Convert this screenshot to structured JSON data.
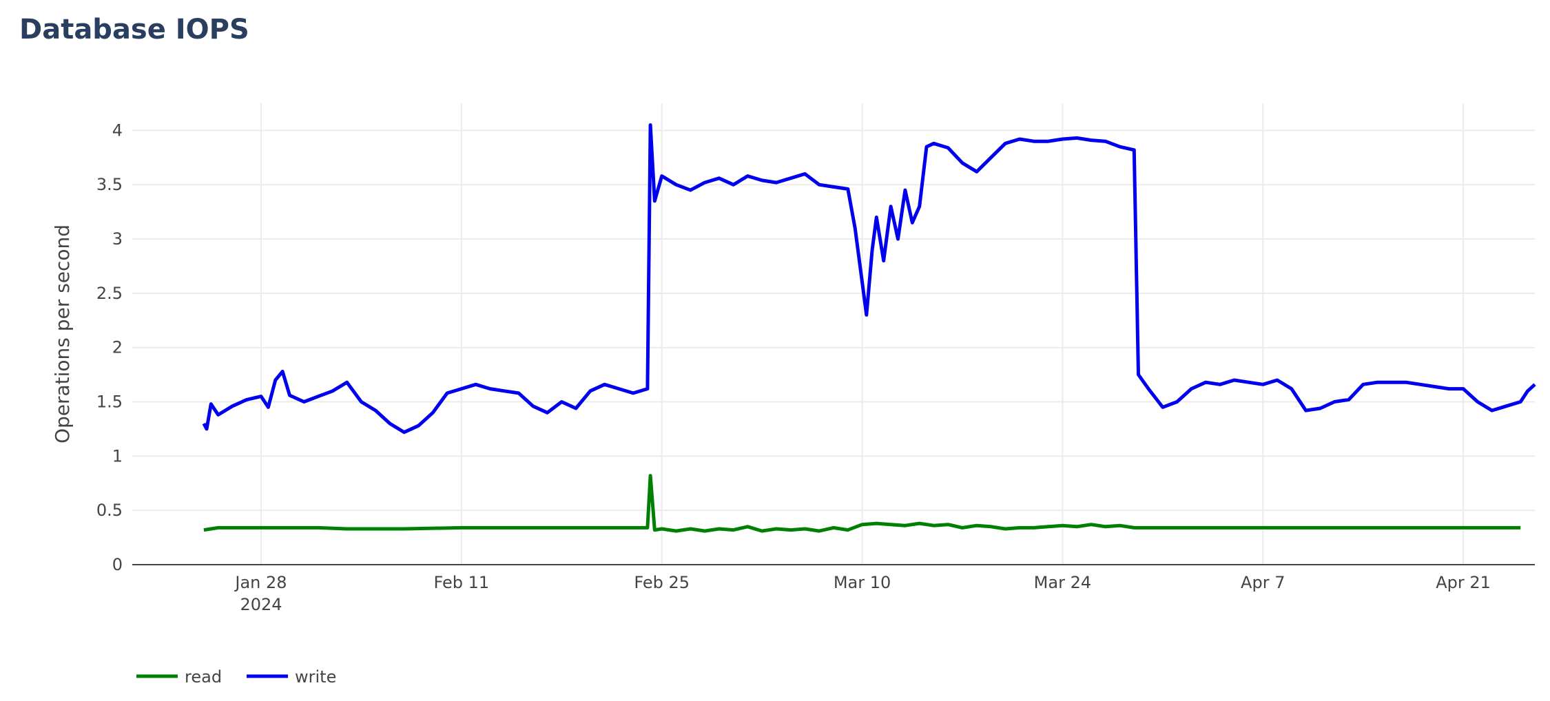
{
  "title": "Database IOPS",
  "chart_data": {
    "type": "line",
    "title": "Database IOPS",
    "xlabel": "",
    "ylabel": "Operations per second",
    "x_range": [
      "2024-01-19",
      "2024-04-26"
    ],
    "ylim": [
      0,
      4.25
    ],
    "y_ticks": [
      0,
      0.5,
      1,
      1.5,
      2,
      2.5,
      3,
      3.5,
      4
    ],
    "y_tick_labels": [
      "0",
      "0.5",
      "1",
      "1.5",
      "2",
      "2.5",
      "3",
      "3.5",
      "4"
    ],
    "x_ticks": [
      {
        "date": "2024-01-28",
        "label": "Jan 28",
        "sublabel": "2024"
      },
      {
        "date": "2024-02-11",
        "label": "Feb 11",
        "sublabel": ""
      },
      {
        "date": "2024-02-25",
        "label": "Feb 25",
        "sublabel": ""
      },
      {
        "date": "2024-03-10",
        "label": "Mar 10",
        "sublabel": ""
      },
      {
        "date": "2024-03-24",
        "label": "Mar 24",
        "sublabel": ""
      },
      {
        "date": "2024-04-07",
        "label": "Apr 7",
        "sublabel": ""
      },
      {
        "date": "2024-04-21",
        "label": "Apr 21",
        "sublabel": ""
      }
    ],
    "grid": true,
    "legend_position": "bottom-left",
    "series": [
      {
        "name": "read",
        "color": "#008000",
        "points": [
          [
            "2024-01-24",
            0.32
          ],
          [
            "2024-01-25",
            0.34
          ],
          [
            "2024-01-27",
            0.34
          ],
          [
            "2024-01-28",
            0.34
          ],
          [
            "2024-02-01",
            0.34
          ],
          [
            "2024-02-03",
            0.33
          ],
          [
            "2024-02-07",
            0.33
          ],
          [
            "2024-02-11",
            0.34
          ],
          [
            "2024-02-16",
            0.34
          ],
          [
            "2024-02-20",
            0.34
          ],
          [
            "2024-02-22",
            0.34
          ],
          [
            "2024-02-24",
            0.34
          ],
          [
            "2024-02-24.2",
            0.82
          ],
          [
            "2024-02-24.5",
            0.32
          ],
          [
            "2024-02-25",
            0.33
          ],
          [
            "2024-02-26",
            0.31
          ],
          [
            "2024-02-27",
            0.33
          ],
          [
            "2024-02-28",
            0.31
          ],
          [
            "2024-02-29",
            0.33
          ],
          [
            "2024-03-01",
            0.32
          ],
          [
            "2024-03-02",
            0.35
          ],
          [
            "2024-03-03",
            0.31
          ],
          [
            "2024-03-04",
            0.33
          ],
          [
            "2024-03-05",
            0.32
          ],
          [
            "2024-03-06",
            0.33
          ],
          [
            "2024-03-07",
            0.31
          ],
          [
            "2024-03-08",
            0.34
          ],
          [
            "2024-03-09",
            0.32
          ],
          [
            "2024-03-10",
            0.37
          ],
          [
            "2024-03-11",
            0.38
          ],
          [
            "2024-03-12",
            0.37
          ],
          [
            "2024-03-13",
            0.36
          ],
          [
            "2024-03-14",
            0.38
          ],
          [
            "2024-03-15",
            0.36
          ],
          [
            "2024-03-16",
            0.37
          ],
          [
            "2024-03-17",
            0.34
          ],
          [
            "2024-03-18",
            0.36
          ],
          [
            "2024-03-19",
            0.35
          ],
          [
            "2024-03-20",
            0.33
          ],
          [
            "2024-03-21",
            0.34
          ],
          [
            "2024-03-22",
            0.34
          ],
          [
            "2024-03-23",
            0.35
          ],
          [
            "2024-03-24",
            0.36
          ],
          [
            "2024-03-25",
            0.35
          ],
          [
            "2024-03-26",
            0.37
          ],
          [
            "2024-03-27",
            0.35
          ],
          [
            "2024-03-28",
            0.36
          ],
          [
            "2024-03-29",
            0.34
          ],
          [
            "2024-03-31",
            0.34
          ],
          [
            "2024-04-03",
            0.34
          ],
          [
            "2024-04-07",
            0.34
          ],
          [
            "2024-04-10",
            0.34
          ],
          [
            "2024-04-14",
            0.34
          ],
          [
            "2024-04-18",
            0.34
          ],
          [
            "2024-04-21",
            0.34
          ],
          [
            "2024-04-25",
            0.34
          ]
        ]
      },
      {
        "name": "write",
        "color": "#0000ee",
        "points": [
          [
            "2024-01-24",
            1.3
          ],
          [
            "2024-01-24.2",
            1.25
          ],
          [
            "2024-01-24.5",
            1.48
          ],
          [
            "2024-01-25",
            1.38
          ],
          [
            "2024-01-26",
            1.46
          ],
          [
            "2024-01-27",
            1.52
          ],
          [
            "2024-01-28",
            1.55
          ],
          [
            "2024-01-28.5",
            1.45
          ],
          [
            "2024-01-29",
            1.7
          ],
          [
            "2024-01-29.5",
            1.78
          ],
          [
            "2024-01-30",
            1.56
          ],
          [
            "2024-01-31",
            1.5
          ],
          [
            "2024-02-01",
            1.55
          ],
          [
            "2024-02-02",
            1.6
          ],
          [
            "2024-02-03",
            1.68
          ],
          [
            "2024-02-04",
            1.5
          ],
          [
            "2024-02-05",
            1.42
          ],
          [
            "2024-02-06",
            1.3
          ],
          [
            "2024-02-07",
            1.22
          ],
          [
            "2024-02-08",
            1.28
          ],
          [
            "2024-02-09",
            1.4
          ],
          [
            "2024-02-10",
            1.58
          ],
          [
            "2024-02-11",
            1.62
          ],
          [
            "2024-02-12",
            1.66
          ],
          [
            "2024-02-13",
            1.62
          ],
          [
            "2024-02-14",
            1.6
          ],
          [
            "2024-02-15",
            1.58
          ],
          [
            "2024-02-16",
            1.46
          ],
          [
            "2024-02-17",
            1.4
          ],
          [
            "2024-02-18",
            1.5
          ],
          [
            "2024-02-19",
            1.44
          ],
          [
            "2024-02-20",
            1.6
          ],
          [
            "2024-02-21",
            1.66
          ],
          [
            "2024-02-22",
            1.62
          ],
          [
            "2024-02-23",
            1.58
          ],
          [
            "2024-02-24",
            1.62
          ],
          [
            "2024-02-24.2",
            4.05
          ],
          [
            "2024-02-24.5",
            3.35
          ],
          [
            "2024-02-25",
            3.58
          ],
          [
            "2024-02-26",
            3.5
          ],
          [
            "2024-02-27",
            3.45
          ],
          [
            "2024-02-28",
            3.52
          ],
          [
            "2024-02-29",
            3.56
          ],
          [
            "2024-03-01",
            3.5
          ],
          [
            "2024-03-02",
            3.58
          ],
          [
            "2024-03-03",
            3.54
          ],
          [
            "2024-03-04",
            3.52
          ],
          [
            "2024-03-05",
            3.56
          ],
          [
            "2024-03-06",
            3.6
          ],
          [
            "2024-03-07",
            3.5
          ],
          [
            "2024-03-08",
            3.48
          ],
          [
            "2024-03-09",
            3.46
          ],
          [
            "2024-03-09.5",
            3.1
          ],
          [
            "2024-03-10",
            2.6
          ],
          [
            "2024-03-10.3",
            2.3
          ],
          [
            "2024-03-10.7",
            2.9
          ],
          [
            "2024-03-11",
            3.2
          ],
          [
            "2024-03-11.5",
            2.8
          ],
          [
            "2024-03-12",
            3.3
          ],
          [
            "2024-03-12.5",
            3.0
          ],
          [
            "2024-03-13",
            3.45
          ],
          [
            "2024-03-13.5",
            3.15
          ],
          [
            "2024-03-14",
            3.3
          ],
          [
            "2024-03-14.5",
            3.85
          ],
          [
            "2024-03-15",
            3.88
          ],
          [
            "2024-03-16",
            3.84
          ],
          [
            "2024-03-17",
            3.7
          ],
          [
            "2024-03-18",
            3.62
          ],
          [
            "2024-03-19",
            3.75
          ],
          [
            "2024-03-20",
            3.88
          ],
          [
            "2024-03-21",
            3.92
          ],
          [
            "2024-03-22",
            3.9
          ],
          [
            "2024-03-23",
            3.9
          ],
          [
            "2024-03-24",
            3.92
          ],
          [
            "2024-03-25",
            3.93
          ],
          [
            "2024-03-26",
            3.91
          ],
          [
            "2024-03-27",
            3.9
          ],
          [
            "2024-03-28",
            3.85
          ],
          [
            "2024-03-29",
            3.82
          ],
          [
            "2024-03-29.3",
            1.75
          ],
          [
            "2024-03-30",
            1.62
          ],
          [
            "2024-03-31",
            1.45
          ],
          [
            "2024-04-01",
            1.5
          ],
          [
            "2024-04-02",
            1.62
          ],
          [
            "2024-04-03",
            1.68
          ],
          [
            "2024-04-04",
            1.66
          ],
          [
            "2024-04-05",
            1.7
          ],
          [
            "2024-04-06",
            1.68
          ],
          [
            "2024-04-07",
            1.66
          ],
          [
            "2024-04-08",
            1.7
          ],
          [
            "2024-04-09",
            1.62
          ],
          [
            "2024-04-10",
            1.42
          ],
          [
            "2024-04-11",
            1.44
          ],
          [
            "2024-04-12",
            1.5
          ],
          [
            "2024-04-13",
            1.52
          ],
          [
            "2024-04-14",
            1.66
          ],
          [
            "2024-04-15",
            1.68
          ],
          [
            "2024-04-16",
            1.68
          ],
          [
            "2024-04-17",
            1.68
          ],
          [
            "2024-04-18",
            1.66
          ],
          [
            "2024-04-19",
            1.64
          ],
          [
            "2024-04-20",
            1.62
          ],
          [
            "2024-04-21",
            1.62
          ],
          [
            "2024-04-22",
            1.5
          ],
          [
            "2024-04-23",
            1.42
          ],
          [
            "2024-04-24",
            1.46
          ],
          [
            "2024-04-25",
            1.5
          ],
          [
            "2024-04-25.5",
            1.6
          ],
          [
            "2024-04-26",
            1.66
          ]
        ]
      }
    ]
  }
}
